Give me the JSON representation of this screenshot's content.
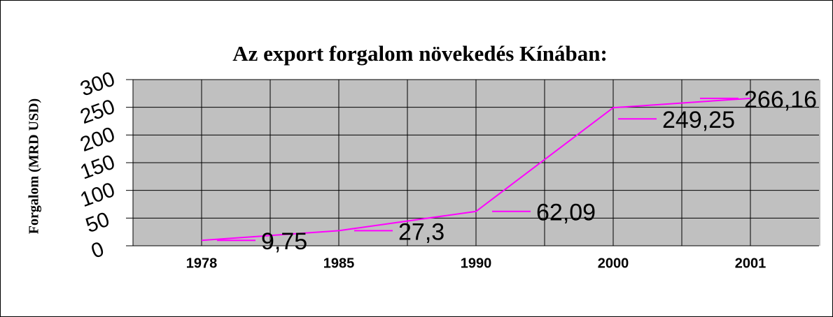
{
  "chart_data": {
    "type": "line",
    "title": "Az export forgalom növekedés Kínában:",
    "y_label": "Forgalom (MRD USD)",
    "categories": [
      "1978",
      "1985",
      "1990",
      "2000",
      "2001"
    ],
    "series": [
      {
        "color": "#ff00ff",
        "values": [
          9.75,
          27.3,
          62.09,
          249.25,
          266.16
        ],
        "value_labels": [
          "9,75",
          "27,3",
          "62,09",
          "249,25",
          "266,16"
        ]
      }
    ],
    "ylim": [
      0,
      300
    ],
    "yticks": [
      0,
      50,
      100,
      150,
      200,
      250,
      300
    ],
    "grid": true
  }
}
